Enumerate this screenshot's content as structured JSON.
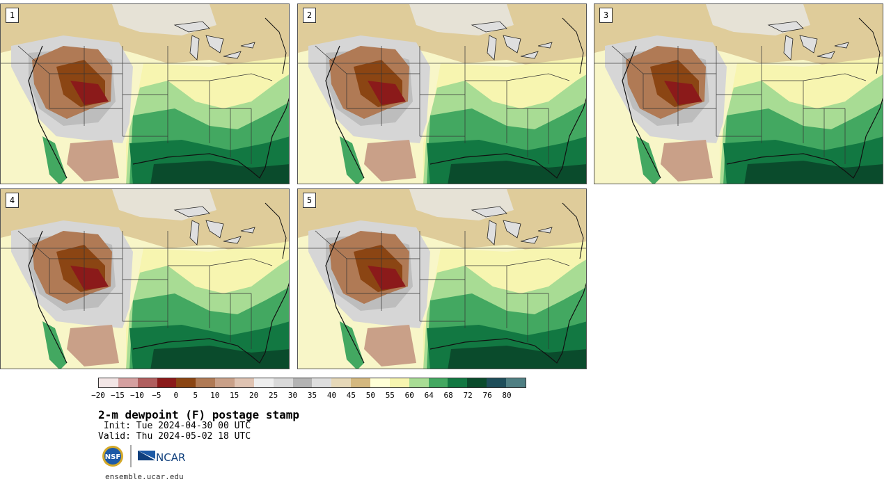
{
  "panels": [
    {
      "label": "1"
    },
    {
      "label": "2"
    },
    {
      "label": "3"
    },
    {
      "label": "4"
    },
    {
      "label": "5"
    }
  ],
  "legend": {
    "ticks": [
      "−20",
      "−15",
      "−10",
      "−5",
      "0",
      "5",
      "10",
      "15",
      "20",
      "25",
      "30",
      "35",
      "40",
      "45",
      "50",
      "55",
      "60",
      "64",
      "68",
      "72",
      "76",
      "80"
    ],
    "colors": [
      "#f3e6e6",
      "#d5a0a0",
      "#b05e5e",
      "#8b1a1a",
      "#8b4513",
      "#b07a55",
      "#c9a088",
      "#dfc3b2",
      "#eeeeee",
      "#d9d9d9",
      "#b3b3b3",
      "#dedede",
      "#e6d8b8",
      "#d4b87f",
      "#ffffd7",
      "#f7f5b0",
      "#a8dc94",
      "#43a861",
      "#127842",
      "#0a4b2c",
      "#1e4e5a",
      "#4f7f83"
    ]
  },
  "title": "2-m dewpoint (F) postage stamp",
  "init": " Init: Tue 2024-04-30 00 UTC",
  "valid": "Valid: Thu 2024-05-02 18 UTC",
  "logos": {
    "nsf": "NSF",
    "ncar": "NCAR"
  },
  "site": "ensemble.ucar.edu"
}
